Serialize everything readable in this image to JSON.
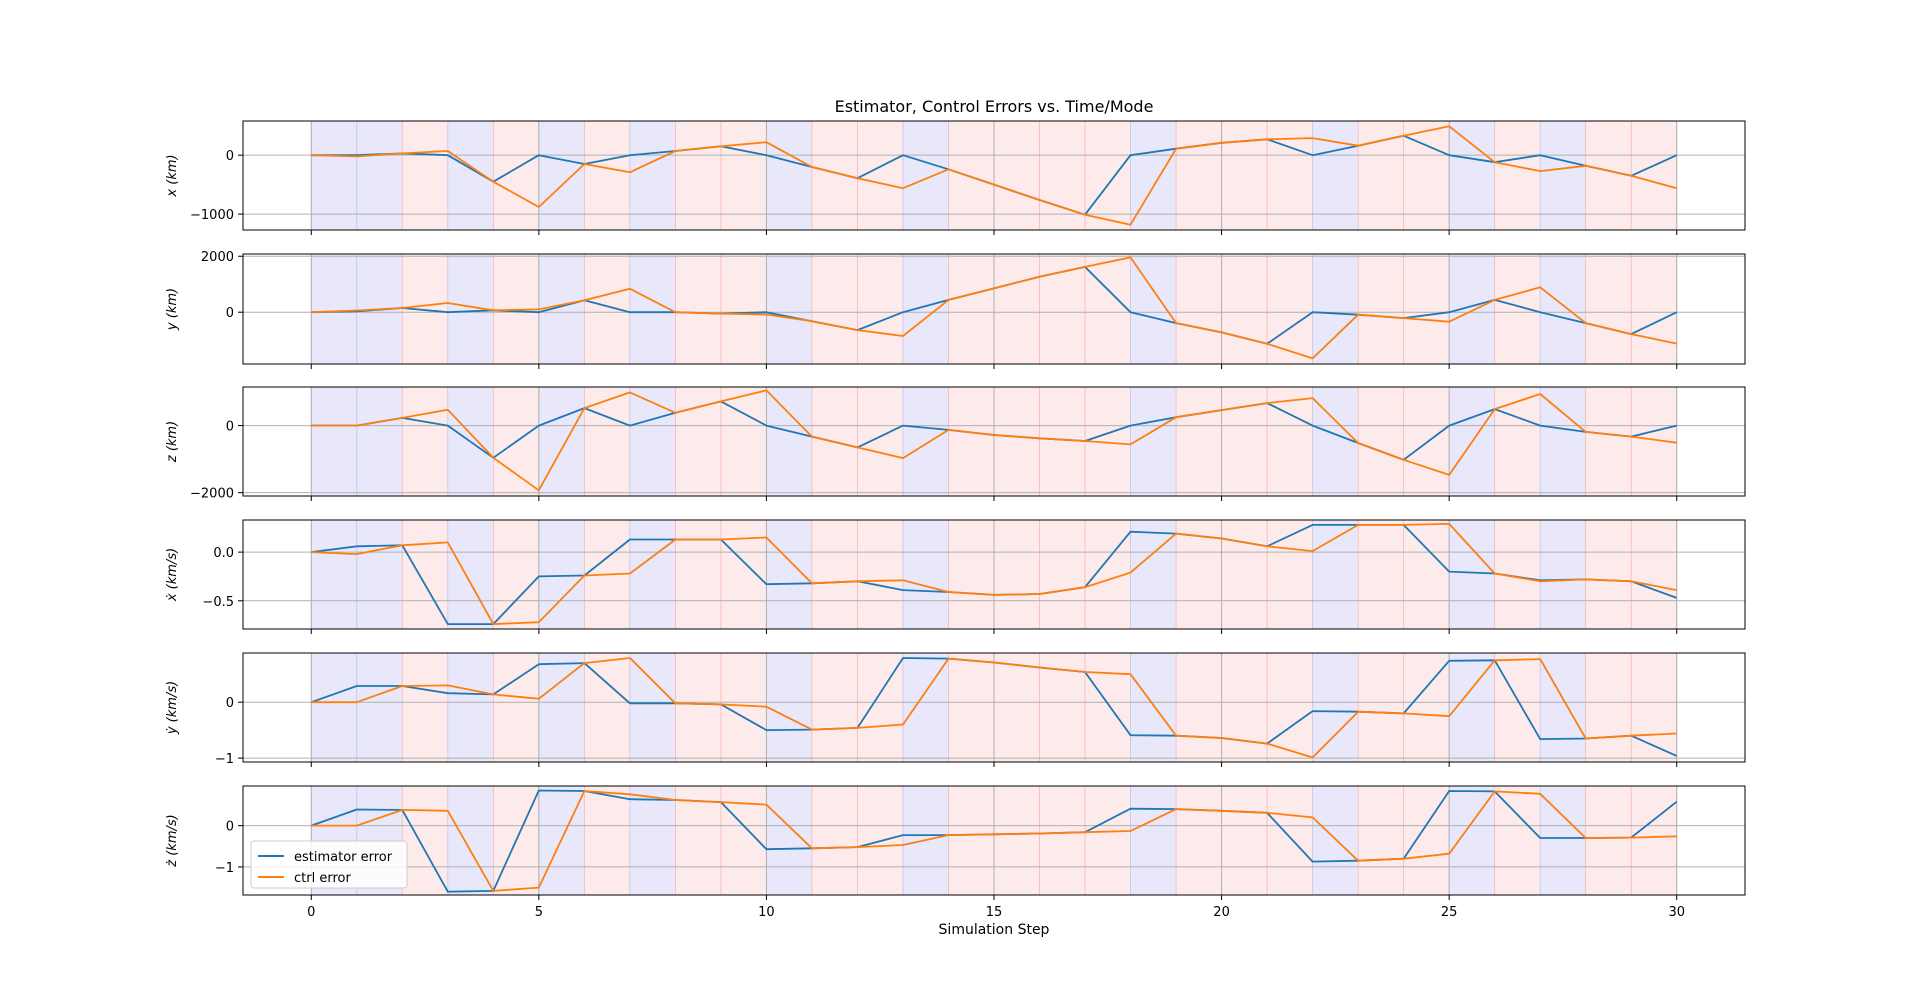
{
  "chart_data": {
    "type": "line",
    "title": "Estimator, Control Errors vs. Time/Mode",
    "xlabel": "Simulation Step",
    "xlim": [
      -1.5,
      31.5
    ],
    "x_ticks": [
      0,
      5,
      10,
      15,
      20,
      25,
      30
    ],
    "x": [
      0,
      1,
      2,
      3,
      4,
      5,
      6,
      7,
      8,
      9,
      10,
      11,
      12,
      13,
      14,
      15,
      16,
      17,
      18,
      19,
      20,
      21,
      22,
      23,
      24,
      25,
      26,
      27,
      28,
      29,
      30
    ],
    "legend": {
      "location": "lower-left",
      "entries": [
        "estimator error",
        "ctrl error"
      ]
    },
    "colors": {
      "estimator": "#1f77b4",
      "ctrl": "#ff7f0e",
      "grid": "#b0b0b0",
      "mode_a": "#e8e8fa",
      "mode_b": "#fdeaea",
      "mode_b_line": "#f5a0a0",
      "mode_a_line": "#b0b0e8"
    },
    "modes": [
      "A",
      "A",
      "B",
      "A",
      "B",
      "A",
      "B",
      "A",
      "B",
      "B",
      "A",
      "B",
      "B",
      "A",
      "B",
      "B",
      "B",
      "B",
      "A",
      "B",
      "B",
      "B",
      "A",
      "B",
      "B",
      "A",
      "B",
      "A",
      "B",
      "B"
    ],
    "panels": [
      {
        "ylabel": "x (km)",
        "ylim": [
          -1270,
          580
        ],
        "y_ticks": [
          0,
          -1000
        ],
        "y_tick_labels": [
          "0",
          "−1000"
        ],
        "series": [
          {
            "name": "estimator error",
            "values": [
              0,
              0,
              30,
              0,
              -450,
              0,
              -150,
              0,
              70,
              150,
              0,
              -200,
              -390,
              0,
              -240,
              -500,
              -760,
              -1010,
              0,
              110,
              210,
              270,
              0,
              160,
              330,
              0,
              -120,
              0,
              -180,
              -350,
              0
            ]
          },
          {
            "name": "ctrl error",
            "values": [
              0,
              -20,
              30,
              70,
              -450,
              -880,
              -150,
              -290,
              70,
              150,
              220,
              -200,
              -390,
              -560,
              -240,
              -500,
              -760,
              -1010,
              -1180,
              110,
              210,
              270,
              290,
              160,
              330,
              490,
              -120,
              -270,
              -180,
              -350,
              -560
            ]
          }
        ]
      },
      {
        "ylabel": "y (km)",
        "ylim": [
          -1850,
          2080
        ],
        "y_ticks": [
          2000,
          0
        ],
        "y_tick_labels": [
          "2000",
          "0"
        ],
        "series": [
          {
            "name": "estimator error",
            "values": [
              0,
              30,
              150,
              0,
              70,
              0,
              430,
              0,
              0,
              -50,
              0,
              -320,
              -640,
              0,
              440,
              850,
              1270,
              1620,
              0,
              -390,
              -720,
              -1130,
              0,
              -90,
              -210,
              0,
              440,
              0,
              -390,
              -780,
              0
            ]
          },
          {
            "name": "ctrl error",
            "values": [
              0,
              60,
              150,
              330,
              70,
              100,
              430,
              840,
              0,
              -50,
              -80,
              -320,
              -640,
              -850,
              440,
              850,
              1270,
              1620,
              1960,
              -390,
              -720,
              -1130,
              -1650,
              -90,
              -210,
              -340,
              440,
              890,
              -390,
              -780,
              -1120
            ]
          }
        ]
      },
      {
        "ylabel": "z (km)",
        "ylim": [
          -2100,
          1150
        ],
        "y_ticks": [
          0,
          -2000
        ],
        "y_tick_labels": [
          "0",
          "−2000"
        ],
        "series": [
          {
            "name": "estimator error",
            "values": [
              0,
              0,
              230,
              0,
              -960,
              0,
              520,
              0,
              380,
              720,
              0,
              -330,
              -650,
              0,
              -130,
              -280,
              -380,
              -460,
              0,
              250,
              460,
              670,
              0,
              -520,
              -1020,
              0,
              490,
              0,
              -190,
              -330,
              0
            ]
          },
          {
            "name": "ctrl error",
            "values": [
              0,
              0,
              230,
              470,
              -960,
              -1930,
              520,
              990,
              380,
              720,
              1050,
              -330,
              -650,
              -970,
              -130,
              -280,
              -380,
              -460,
              -560,
              250,
              460,
              670,
              820,
              -520,
              -1020,
              -1470,
              490,
              940,
              -190,
              -330,
              -510
            ]
          }
        ]
      },
      {
        "ylabel": "ẋ (km/s)",
        "ylim": [
          -0.79,
          0.33
        ],
        "y_ticks": [
          0.0,
          -0.5
        ],
        "y_tick_labels": [
          "0.0",
          "−0.5"
        ],
        "series": [
          {
            "name": "estimator error",
            "values": [
              0,
              0.06,
              0.07,
              -0.74,
              -0.74,
              -0.25,
              -0.24,
              0.13,
              0.13,
              0.13,
              -0.33,
              -0.32,
              -0.3,
              -0.39,
              -0.41,
              -0.44,
              -0.43,
              -0.36,
              0.21,
              0.19,
              0.14,
              0.06,
              0.28,
              0.28,
              0.28,
              -0.2,
              -0.22,
              -0.29,
              -0.28,
              -0.3,
              -0.47
            ]
          },
          {
            "name": "ctrl error",
            "values": [
              0,
              -0.02,
              0.07,
              0.1,
              -0.74,
              -0.72,
              -0.24,
              -0.22,
              0.13,
              0.13,
              0.15,
              -0.32,
              -0.3,
              -0.29,
              -0.41,
              -0.44,
              -0.43,
              -0.36,
              -0.21,
              0.19,
              0.14,
              0.06,
              0.01,
              0.28,
              0.28,
              0.29,
              -0.22,
              -0.3,
              -0.28,
              -0.3,
              -0.39
            ]
          }
        ]
      },
      {
        "ylabel": "ẏ (km/s)",
        "ylim": [
          -1.07,
          0.88
        ],
        "y_ticks": [
          0,
          -1
        ],
        "y_tick_labels": [
          "0",
          "−1"
        ],
        "series": [
          {
            "name": "estimator error",
            "values": [
              0,
              0.29,
              0.29,
              0.16,
              0.14,
              0.68,
              0.7,
              -0.02,
              -0.02,
              -0.04,
              -0.5,
              -0.49,
              -0.46,
              0.79,
              0.78,
              0.71,
              0.62,
              0.54,
              -0.59,
              -0.6,
              -0.64,
              -0.74,
              -0.16,
              -0.17,
              -0.2,
              0.74,
              0.75,
              -0.66,
              -0.65,
              -0.6,
              -0.96
            ]
          },
          {
            "name": "ctrl error",
            "values": [
              0,
              0,
              0.29,
              0.3,
              0.14,
              0.06,
              0.7,
              0.79,
              -0.02,
              -0.04,
              -0.08,
              -0.49,
              -0.46,
              -0.4,
              0.78,
              0.71,
              0.62,
              0.54,
              0.5,
              -0.6,
              -0.64,
              -0.74,
              -0.99,
              -0.17,
              -0.2,
              -0.25,
              0.75,
              0.77,
              -0.65,
              -0.6,
              -0.56
            ]
          }
        ]
      },
      {
        "ylabel": "ż (km/s)",
        "ylim": [
          -1.68,
          0.96
        ],
        "y_ticks": [
          0,
          -1
        ],
        "y_tick_labels": [
          "0",
          "−1"
        ],
        "series": [
          {
            "name": "estimator error",
            "values": [
              0,
              0.39,
              0.38,
              -1.6,
              -1.58,
              0.85,
              0.84,
              0.64,
              0.62,
              0.57,
              -0.57,
              -0.55,
              -0.52,
              -0.23,
              -0.23,
              -0.21,
              -0.19,
              -0.16,
              0.41,
              0.4,
              0.36,
              0.31,
              -0.87,
              -0.85,
              -0.8,
              0.84,
              0.83,
              -0.3,
              -0.3,
              -0.29,
              0.58
            ]
          },
          {
            "name": "ctrl error",
            "values": [
              0,
              0,
              0.38,
              0.36,
              -1.58,
              -1.5,
              0.84,
              0.76,
              0.62,
              0.57,
              0.51,
              -0.55,
              -0.52,
              -0.47,
              -0.23,
              -0.21,
              -0.19,
              -0.16,
              -0.13,
              0.4,
              0.36,
              0.31,
              0.2,
              -0.85,
              -0.8,
              -0.68,
              0.83,
              0.77,
              -0.3,
              -0.29,
              -0.26
            ]
          }
        ]
      }
    ]
  }
}
